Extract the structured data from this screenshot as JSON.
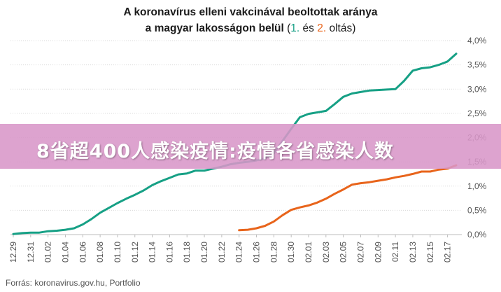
{
  "title": {
    "line1": "A koronavírus elleni vakcinával beoltottak aránya",
    "line2_prefix": "a magyar lakosságon belül",
    "paren_open": "(",
    "first_label": "1.",
    "and_word": "és",
    "second_label": "2.",
    "suffix": "oltás)"
  },
  "source": "Forrás: koronavirus.gov.hu, Portfolio",
  "banner": "8省超400人感染疫情:疫情各省感染人数",
  "colors": {
    "first_dose": "#16a085",
    "second_dose": "#e8641b",
    "grid": "#d9d9d9"
  },
  "chart_data": {
    "type": "line",
    "ylim": [
      0,
      4
    ],
    "y_ticks": [
      "0,0%",
      "0,5%",
      "1,0%",
      "1,5%",
      "2,0%",
      "2,5%",
      "3,0%",
      "3,5%",
      "4,0%"
    ],
    "x_ticks": [
      "12.29",
      "12.31",
      "01.02",
      "01.04",
      "01.06",
      "01.08",
      "01.10",
      "01.12",
      "01.14",
      "01.16",
      "01.18",
      "01.20",
      "01.22",
      "01.24",
      "01.26",
      "01.28",
      "01.30",
      "02.01",
      "02.03",
      "02.05",
      "02.07",
      "02.09",
      "02.11",
      "02.13",
      "02.15",
      "02.17"
    ],
    "dates": [
      "12.29",
      "12.30",
      "12.31",
      "01.01",
      "01.02",
      "01.03",
      "01.04",
      "01.05",
      "01.06",
      "01.07",
      "01.08",
      "01.09",
      "01.10",
      "01.11",
      "01.12",
      "01.13",
      "01.14",
      "01.15",
      "01.16",
      "01.17",
      "01.18",
      "01.19",
      "01.20",
      "01.21",
      "01.22",
      "01.23",
      "01.24",
      "01.25",
      "01.26",
      "01.27",
      "01.28",
      "01.29",
      "01.30",
      "01.31",
      "02.01",
      "02.02",
      "02.03",
      "02.04",
      "02.05",
      "02.06",
      "02.07",
      "02.08",
      "02.09",
      "02.10",
      "02.11",
      "02.12",
      "02.13",
      "02.14",
      "02.15",
      "02.16",
      "02.17",
      "02.18"
    ],
    "series": [
      {
        "values": [
          0.01,
          0.03,
          0.04,
          0.04,
          0.07,
          0.08,
          0.1,
          0.13,
          0.21,
          0.32,
          0.45,
          0.55,
          0.65,
          0.74,
          0.82,
          0.91,
          1.02,
          1.1,
          1.17,
          1.24,
          1.26,
          1.32,
          1.32,
          1.36,
          1.4,
          1.45,
          1.48,
          1.5,
          1.53,
          1.57,
          1.68,
          1.93,
          2.18,
          2.42,
          2.49,
          2.52,
          2.55,
          2.69,
          2.84,
          2.91,
          2.94,
          2.97,
          2.98,
          2.99,
          3.0,
          3.17,
          3.38,
          3.43,
          3.45,
          3.5,
          3.57,
          3.73
        ]
      },
      {
        "values": [
          null,
          null,
          null,
          null,
          null,
          null,
          null,
          null,
          null,
          null,
          null,
          null,
          null,
          null,
          null,
          null,
          null,
          null,
          null,
          null,
          null,
          null,
          null,
          null,
          null,
          null,
          0.09,
          0.1,
          0.13,
          0.18,
          0.27,
          0.4,
          0.51,
          0.56,
          0.6,
          0.66,
          0.74,
          0.84,
          0.93,
          1.03,
          1.06,
          1.08,
          1.11,
          1.14,
          1.18,
          1.21,
          1.25,
          1.3,
          1.3,
          1.34,
          1.36,
          1.43
        ]
      }
    ]
  }
}
